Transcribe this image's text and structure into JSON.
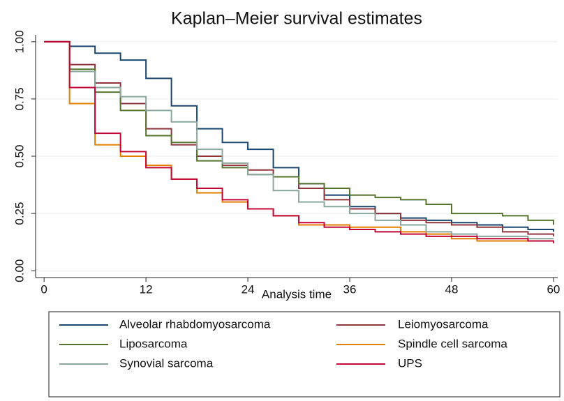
{
  "chart_data": {
    "type": "step-line",
    "title": "Kaplan–Meier survival estimates",
    "x_label": "Analysis time",
    "x": [
      0,
      3,
      6,
      9,
      12,
      15,
      18,
      21,
      24,
      27,
      30,
      33,
      36,
      39,
      42,
      45,
      48,
      51,
      54,
      57,
      60
    ],
    "series": [
      {
        "name": "Alveolar rhabdomyosarcoma",
        "color": "#1a476f",
        "values": [
          1.0,
          0.98,
          0.95,
          0.92,
          0.84,
          0.72,
          0.62,
          0.56,
          0.53,
          0.45,
          0.38,
          0.33,
          0.28,
          0.25,
          0.23,
          0.22,
          0.21,
          0.2,
          0.19,
          0.18,
          0.17
        ]
      },
      {
        "name": "Leiomyosarcoma",
        "color": "#90353b",
        "values": [
          1.0,
          0.9,
          0.82,
          0.73,
          0.62,
          0.55,
          0.5,
          0.46,
          0.44,
          0.41,
          0.36,
          0.31,
          0.27,
          0.25,
          0.22,
          0.21,
          0.2,
          0.19,
          0.17,
          0.16,
          0.15
        ]
      },
      {
        "name": "Liposarcoma",
        "color": "#55752f",
        "values": [
          1.0,
          0.88,
          0.78,
          0.7,
          0.59,
          0.56,
          0.48,
          0.45,
          0.42,
          0.41,
          0.38,
          0.36,
          0.33,
          0.32,
          0.31,
          0.29,
          0.25,
          0.25,
          0.24,
          0.22,
          0.2
        ]
      },
      {
        "name": "Spindle cell sarcoma",
        "color": "#e37e00",
        "values": [
          1.0,
          0.73,
          0.55,
          0.5,
          0.46,
          0.4,
          0.34,
          0.3,
          0.27,
          0.24,
          0.2,
          0.2,
          0.19,
          0.19,
          0.17,
          0.16,
          0.14,
          0.13,
          0.13,
          0.13,
          0.13
        ]
      },
      {
        "name": "Synovial sarcoma",
        "color": "#8aa79d",
        "values": [
          1.0,
          0.87,
          0.8,
          0.76,
          0.7,
          0.65,
          0.53,
          0.47,
          0.42,
          0.35,
          0.3,
          0.28,
          0.25,
          0.22,
          0.2,
          0.17,
          0.16,
          0.15,
          0.15,
          0.14,
          0.14
        ]
      },
      {
        "name": "UPS",
        "color": "#c10534",
        "values": [
          1.0,
          0.8,
          0.6,
          0.52,
          0.45,
          0.4,
          0.36,
          0.31,
          0.27,
          0.24,
          0.21,
          0.19,
          0.18,
          0.17,
          0.16,
          0.15,
          0.15,
          0.14,
          0.14,
          0.13,
          0.12
        ]
      }
    ],
    "xlim": [
      -1,
      60.5
    ],
    "xticks": [
      0,
      12,
      24,
      36,
      48,
      60
    ],
    "ylim": [
      -0.03,
      1.03
    ],
    "yticks": [
      {
        "value": 0,
        "label": "0.00"
      },
      0.25,
      {
        "value": 0.5,
        "label": "0.50"
      },
      0.75,
      {
        "value": 1,
        "label": "1.00"
      }
    ],
    "grid": true
  }
}
